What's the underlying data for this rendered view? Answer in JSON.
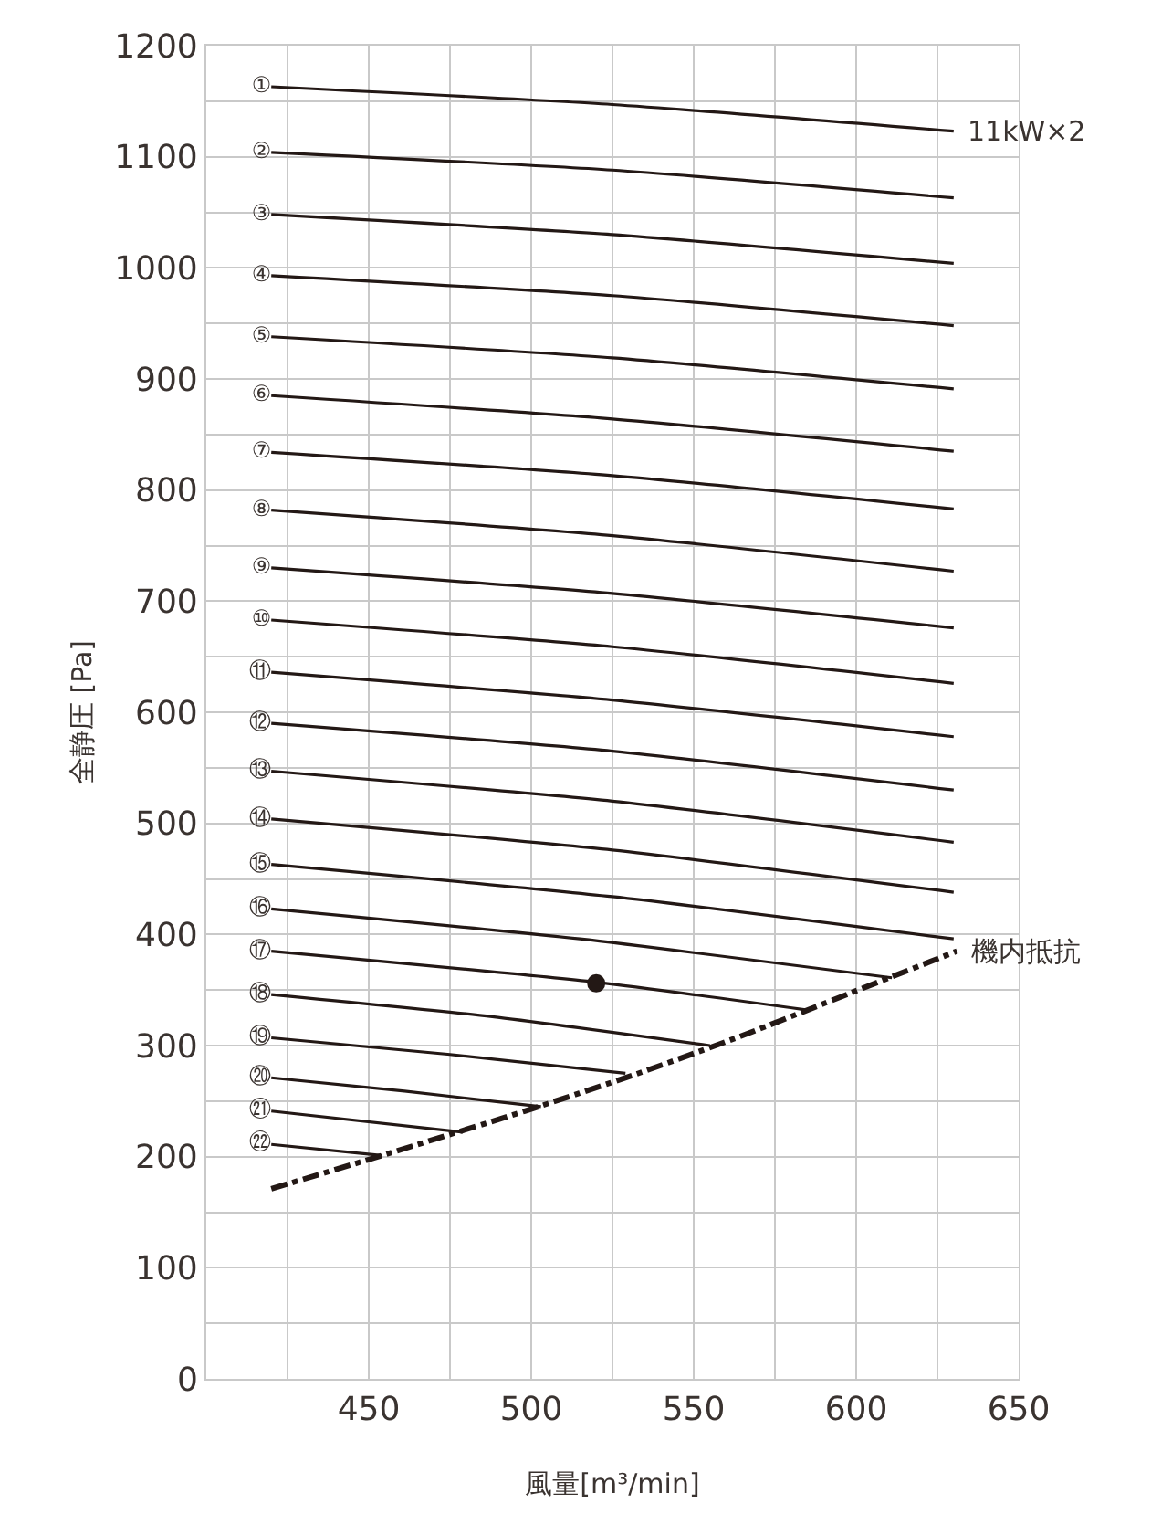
{
  "chart_data": {
    "type": "line",
    "xlabel": "風量[m³/min]",
    "ylabel": "全静圧 [Pa]",
    "xlim": [
      400,
      650
    ],
    "ylim": [
      0,
      1200
    ],
    "xticks": [
      {
        "value": 425,
        "label": null
      },
      450,
      {
        "value": 475,
        "label": null
      },
      500,
      {
        "value": 525,
        "label": null
      },
      550,
      {
        "value": 575,
        "label": null
      },
      600,
      {
        "value": 625,
        "label": null
      },
      650
    ],
    "yticks": [
      0,
      {
        "value": 50,
        "label": null
      },
      100,
      {
        "value": 150,
        "label": null
      },
      200,
      {
        "value": 250,
        "label": null
      },
      300,
      {
        "value": 350,
        "label": null
      },
      400,
      {
        "value": 450,
        "label": null
      },
      500,
      {
        "value": 550,
        "label": null
      },
      600,
      {
        "value": 650,
        "label": null
      },
      700,
      {
        "value": 750,
        "label": null
      },
      800,
      {
        "value": 850,
        "label": null
      },
      900,
      {
        "value": 950,
        "label": null
      },
      1000,
      {
        "value": 1050,
        "label": null
      },
      1100,
      {
        "value": 1150,
        "label": null
      },
      1200
    ],
    "grid": true,
    "legend": false,
    "marker": "none",
    "line_style": "solid",
    "series": [
      {
        "name": "①",
        "color": "#231815",
        "x": [
          420,
          525,
          630
        ],
        "values": [
          1163,
          1147,
          1123
        ]
      },
      {
        "name": "②",
        "color": "#231815",
        "x": [
          420,
          525,
          630
        ],
        "values": [
          1104,
          1088,
          1063
        ]
      },
      {
        "name": "③",
        "color": "#231815",
        "x": [
          420,
          525,
          630
        ],
        "values": [
          1048,
          1030,
          1004
        ]
      },
      {
        "name": "④",
        "color": "#231815",
        "x": [
          420,
          525,
          630
        ],
        "values": [
          993,
          975,
          948
        ]
      },
      {
        "name": "⑤",
        "color": "#231815",
        "x": [
          420,
          525,
          630
        ],
        "values": [
          938,
          919,
          891
        ]
      },
      {
        "name": "⑥",
        "color": "#231815",
        "x": [
          420,
          525,
          630
        ],
        "values": [
          885,
          864,
          835
        ]
      },
      {
        "name": "⑦",
        "color": "#231815",
        "x": [
          420,
          525,
          630
        ],
        "values": [
          834,
          813,
          783
        ]
      },
      {
        "name": "⑧",
        "color": "#231815",
        "x": [
          420,
          525,
          630
        ],
        "values": [
          782,
          759,
          727
        ]
      },
      {
        "name": "⑨",
        "color": "#231815",
        "x": [
          420,
          525,
          630
        ],
        "values": [
          730,
          707,
          676
        ]
      },
      {
        "name": "⑩",
        "color": "#231815",
        "x": [
          420,
          525,
          630
        ],
        "values": [
          683,
          659,
          626
        ]
      },
      {
        "name": "⑪",
        "color": "#231815",
        "x": [
          420,
          525,
          630
        ],
        "values": [
          636,
          611,
          578
        ]
      },
      {
        "name": "⑫",
        "color": "#231815",
        "x": [
          420,
          525,
          630
        ],
        "values": [
          590,
          565,
          530
        ]
      },
      {
        "name": "⑬",
        "color": "#231815",
        "x": [
          420,
          525,
          630
        ],
        "values": [
          547,
          520,
          483
        ]
      },
      {
        "name": "⑭",
        "color": "#231815",
        "x": [
          420,
          525,
          630
        ],
        "values": [
          504,
          476,
          438
        ]
      },
      {
        "name": "⑮",
        "color": "#231815",
        "x": [
          420,
          525,
          630
        ],
        "values": [
          463,
          434,
          396
        ]
      },
      {
        "name": "⑯",
        "color": "#231815",
        "x": [
          420,
          515,
          611
        ],
        "values": [
          423,
          396,
          361
        ]
      },
      {
        "name": "⑰",
        "color": "#231815",
        "x": [
          420,
          520,
          585
        ],
        "values": [
          385,
          357,
          332
        ]
      },
      {
        "name": "⑱",
        "color": "#231815",
        "x": [
          420,
          488,
          555
        ],
        "values": [
          346,
          326,
          300
        ]
      },
      {
        "name": "⑲",
        "color": "#231815",
        "x": [
          420,
          475,
          529
        ],
        "values": [
          307,
          292,
          275
        ]
      },
      {
        "name": "⑳",
        "color": "#231815",
        "x": [
          420,
          461,
          503
        ],
        "values": [
          271,
          259,
          245
        ]
      },
      {
        "name": "㉑",
        "color": "#231815",
        "x": [
          420,
          479
        ],
        "values": [
          241,
          222
        ]
      },
      {
        "name": "㉒",
        "color": "#231815",
        "x": [
          420,
          454
        ],
        "values": [
          211,
          201
        ]
      },
      {
        "color": "#231815",
        "line_style": "dashdot",
        "x": [
          420,
          454,
          498,
          532,
          565,
          598,
          631
        ],
        "values": [
          171,
          201,
          241,
          274,
          309,
          347,
          385
        ]
      },
      {
        "type": "scatter",
        "marker": "circle",
        "color": "#231815",
        "x": [
          520
        ],
        "values": [
          356
        ]
      }
    ],
    "annotations": [
      {
        "text": "11kW×2",
        "x": 630,
        "y": 1123
      },
      {
        "text": "機内抵抗",
        "x": 631,
        "y": 385
      }
    ]
  }
}
